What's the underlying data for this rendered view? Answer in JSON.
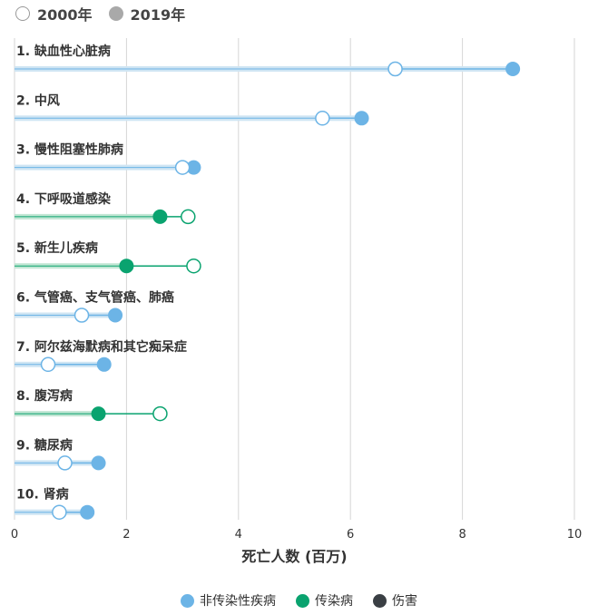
{
  "legend_top": {
    "open_label": "2000年",
    "filled_label": "2019年"
  },
  "legend_bottom": [
    {
      "label": "非传染性疾病",
      "color": "#6cb4e6"
    },
    {
      "label": "传染病",
      "color": "#0aa36f"
    },
    {
      "label": "伤害",
      "color": "#3a3f44"
    }
  ],
  "colors": {
    "noncommunicable": "#6cb4e6",
    "noncommunicable_bar": "#cfe5f3",
    "communicable": "#0aa36f",
    "communicable_bar": "#c2e6d4",
    "grid": "#d6d6d6"
  },
  "chart_data": {
    "type": "dumbbell",
    "xlabel": "死亡人数 (百万)",
    "xlim": [
      0,
      10
    ],
    "xticks": [
      0,
      2,
      4,
      6,
      8,
      10
    ],
    "grid": true,
    "series": [
      {
        "name": "2000年",
        "marker": "open"
      },
      {
        "name": "2019年",
        "marker": "filled"
      }
    ],
    "rows": [
      {
        "label": "1. 缺血性心脏病",
        "category": "noncommunicable",
        "y2000": 6.8,
        "y2019": 8.9
      },
      {
        "label": "2. 中风",
        "category": "noncommunicable",
        "y2000": 5.5,
        "y2019": 6.2
      },
      {
        "label": "3. 慢性阻塞性肺病",
        "category": "noncommunicable",
        "y2000": 3.0,
        "y2019": 3.2
      },
      {
        "label": "4. 下呼吸道感染",
        "category": "communicable",
        "y2000": 3.1,
        "y2019": 2.6
      },
      {
        "label": "5. 新生儿疾病",
        "category": "communicable",
        "y2000": 3.2,
        "y2019": 2.0
      },
      {
        "label": "6. 气管癌、支气管癌、肺癌",
        "category": "noncommunicable",
        "y2000": 1.2,
        "y2019": 1.8
      },
      {
        "label": "7. 阿尔兹海默病和其它痴呆症",
        "category": "noncommunicable",
        "y2000": 0.6,
        "y2019": 1.6
      },
      {
        "label": "8. 腹泻病",
        "category": "communicable",
        "y2000": 2.6,
        "y2019": 1.5
      },
      {
        "label": "9. 糖尿病",
        "category": "noncommunicable",
        "y2000": 0.9,
        "y2019": 1.5
      },
      {
        "label": "10. 肾病",
        "category": "noncommunicable",
        "y2000": 0.8,
        "y2019": 1.3
      }
    ]
  }
}
